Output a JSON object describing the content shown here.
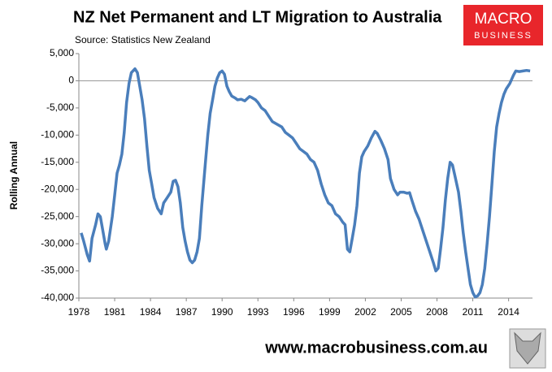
{
  "chart_data": {
    "type": "line",
    "title": "NZ Net Permanent and LT Migration to Australia",
    "subtitle": "Source: Statistics New Zealand",
    "y_label": "Rolling Annual",
    "logo": [
      "MACRO",
      "BUSINESS"
    ],
    "footer": "www.macrobusiness.com.au",
    "color": "#4a7ebb",
    "xlim": [
      1978,
      2016
    ],
    "xticks": [
      1978,
      1981,
      1984,
      1987,
      1990,
      1993,
      1996,
      1999,
      2002,
      2005,
      2008,
      2011,
      2014
    ],
    "ylim": [
      -40000,
      5000
    ],
    "yticks": [
      {
        "value": 5000,
        "label": "5,000"
      },
      0,
      {
        "value": -5000,
        "label": "-5,000"
      },
      {
        "value": -10000,
        "label": "-10,000"
      },
      {
        "value": -15000,
        "label": "-15,000"
      },
      {
        "value": -20000,
        "label": "-20,000"
      },
      {
        "value": -25000,
        "label": "-25,000"
      },
      {
        "value": -30000,
        "label": "-30,000"
      },
      {
        "value": -35000,
        "label": "-35,000"
      },
      {
        "value": -40000,
        "label": "-40,000"
      }
    ],
    "grid": false,
    "x": [
      1978.2,
      1978.4,
      1978.7,
      1978.9,
      1979.1,
      1979.4,
      1979.6,
      1979.8,
      1980.0,
      1980.2,
      1980.3,
      1980.5,
      1980.8,
      1981.0,
      1981.2,
      1981.4,
      1981.6,
      1981.8,
      1982.0,
      1982.2,
      1982.4,
      1982.7,
      1982.9,
      1983.1,
      1983.3,
      1983.5,
      1983.7,
      1983.9,
      1984.1,
      1984.3,
      1984.6,
      1984.9,
      1985.1,
      1985.4,
      1985.7,
      1985.9,
      1986.1,
      1986.3,
      1986.5,
      1986.7,
      1986.9,
      1987.1,
      1987.3,
      1987.5,
      1987.7,
      1987.9,
      1988.1,
      1988.3,
      1988.6,
      1988.8,
      1989.0,
      1989.2,
      1989.4,
      1989.6,
      1989.8,
      1990.0,
      1990.2,
      1990.4,
      1990.6,
      1990.8,
      1991.1,
      1991.3,
      1991.6,
      1991.9,
      1992.1,
      1992.3,
      1992.5,
      1992.8,
      1993.0,
      1993.3,
      1993.6,
      1993.9,
      1994.2,
      1994.6,
      1995.0,
      1995.3,
      1995.6,
      1995.9,
      1996.2,
      1996.5,
      1996.8,
      1997.1,
      1997.4,
      1997.7,
      1998.0,
      1998.3,
      1998.6,
      1998.9,
      1999.2,
      1999.5,
      1999.8,
      2000.1,
      2000.3,
      2000.5,
      2000.7,
      2000.9,
      2001.1,
      2001.3,
      2001.5,
      2001.7,
      2001.9,
      2002.2,
      2002.5,
      2002.8,
      2003.0,
      2003.3,
      2003.6,
      2003.9,
      2004.1,
      2004.4,
      2004.7,
      2004.9,
      2005.2,
      2005.5,
      2005.7,
      2005.9,
      2006.2,
      2006.5,
      2006.8,
      2007.1,
      2007.4,
      2007.7,
      2007.9,
      2008.1,
      2008.3,
      2008.5,
      2008.7,
      2008.9,
      2009.1,
      2009.3,
      2009.5,
      2009.8,
      2010.0,
      2010.2,
      2010.4,
      2010.6,
      2010.8,
      2011.0,
      2011.2,
      2011.4,
      2011.6,
      2011.8,
      2012.0,
      2012.2,
      2012.4,
      2012.6,
      2012.8,
      2013.0,
      2013.2,
      2013.4,
      2013.6,
      2013.8,
      2014.1,
      2014.4,
      2014.6,
      2014.9,
      2015.2,
      2015.5,
      2015.8
    ],
    "series": [
      {
        "name": "Rolling Annual",
        "color": "#4a7ebb",
        "values": [
          -28000,
          -29500,
          -32000,
          -33200,
          -29000,
          -26500,
          -24500,
          -25000,
          -27500,
          -30000,
          -31000,
          -29500,
          -25000,
          -21000,
          -17000,
          -15500,
          -13500,
          -9500,
          -4000,
          -500,
          1500,
          2200,
          1500,
          -1000,
          -3500,
          -7000,
          -12000,
          -16500,
          -19000,
          -21500,
          -23500,
          -24500,
          -22500,
          -21500,
          -20500,
          -18500,
          -18300,
          -19500,
          -22500,
          -27000,
          -29500,
          -31500,
          -33000,
          -33500,
          -33000,
          -31500,
          -29000,
          -23000,
          -15000,
          -10000,
          -6000,
          -3500,
          -1000,
          500,
          1500,
          1800,
          1200,
          -1000,
          -2000,
          -2800,
          -3200,
          -3500,
          -3400,
          -3700,
          -3300,
          -2900,
          -3100,
          -3500,
          -4000,
          -5000,
          -5500,
          -6500,
          -7500,
          -8000,
          -8500,
          -9500,
          -10000,
          -10500,
          -11500,
          -12500,
          -13000,
          -13500,
          -14500,
          -15000,
          -16500,
          -19000,
          -21000,
          -22500,
          -23000,
          -24500,
          -25000,
          -26000,
          -26500,
          -31000,
          -31500,
          -29000,
          -26500,
          -23000,
          -17000,
          -14000,
          -13000,
          -12000,
          -10500,
          -9300,
          -9700,
          -11000,
          -12500,
          -14500,
          -18000,
          -20000,
          -21000,
          -20500,
          -20500,
          -20700,
          -20600,
          -22000,
          -24000,
          -25500,
          -27500,
          -29500,
          -31500,
          -33500,
          -35000,
          -34500,
          -31000,
          -27000,
          -22000,
          -18000,
          -15000,
          -15500,
          -17500,
          -20500,
          -24000,
          -28000,
          -31500,
          -34500,
          -37500,
          -39000,
          -39800,
          -39600,
          -39000,
          -37500,
          -34500,
          -30000,
          -25000,
          -19000,
          -13000,
          -8500,
          -6000,
          -4000,
          -2500,
          -1500,
          -500,
          1000,
          1800,
          1700,
          1800,
          1900,
          1800
        ]
      }
    ]
  }
}
